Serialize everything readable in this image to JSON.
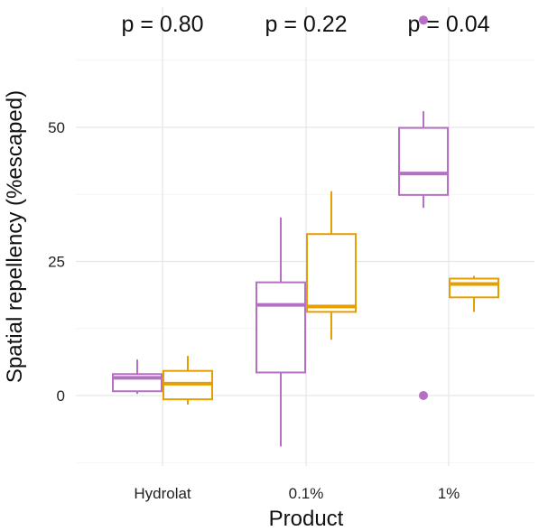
{
  "chart_data": {
    "type": "boxplot",
    "title": "",
    "xlabel": "Product",
    "ylabel": "Spatial repellency (%escaped)",
    "categories": [
      "Hydrolat",
      "0.1%",
      "1%"
    ],
    "y_ticks": [
      0,
      25,
      50
    ],
    "ylim": [
      -14,
      73
    ],
    "grid": true,
    "legend": "none",
    "p_values": [
      "p = 0.80",
      "p = 0.22",
      "p = 0.04"
    ],
    "series": [
      {
        "color": "#b56fc4",
        "boxes": [
          {
            "min": 0.3,
            "q1": 0.8,
            "median": 3.3,
            "q3": 4.0,
            "max": 6.7,
            "outliers": []
          },
          {
            "min": -9.5,
            "q1": 4.3,
            "median": 16.9,
            "q3": 21.1,
            "max": 33.2,
            "outliers": []
          },
          {
            "min": 35.0,
            "q1": 37.4,
            "median": 41.4,
            "q3": 49.9,
            "max": 53.0,
            "outliers": [
              0,
              70
            ]
          }
        ]
      },
      {
        "color": "#e69f00",
        "boxes": [
          {
            "min": -1.7,
            "q1": -0.7,
            "median": 2.2,
            "q3": 4.6,
            "max": 7.4,
            "outliers": []
          },
          {
            "min": 10.4,
            "q1": 15.6,
            "median": 16.6,
            "q3": 30.1,
            "max": 38.1,
            "outliers": []
          },
          {
            "min": 15.6,
            "q1": 18.3,
            "median": 20.8,
            "q3": 21.8,
            "max": 22.3,
            "outliers": []
          }
        ]
      }
    ]
  }
}
